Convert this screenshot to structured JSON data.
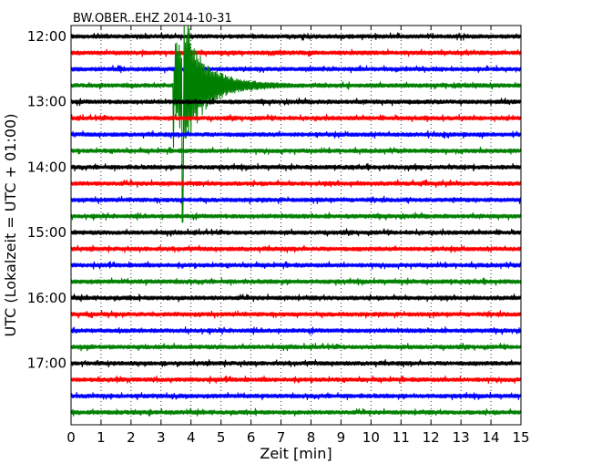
{
  "chart_data": {
    "type": "line",
    "title": "BW.OBER..EHZ 2014-10-31",
    "xlabel": "Zeit  [min]",
    "ylabel": "UTC (Lokalzeit = UTC + 01:00)",
    "xlim": [
      0,
      15
    ],
    "x_ticks": [
      "0",
      "1",
      "2",
      "3",
      "4",
      "5",
      "6",
      "7",
      "8",
      "9",
      "10",
      "11",
      "12",
      "13",
      "14",
      "15"
    ],
    "y_ticks": [
      "12:00",
      "13:00",
      "14:00",
      "15:00",
      "16:00",
      "17:00"
    ],
    "trace_start_times": [
      "12:00",
      "12:15",
      "12:30",
      "12:45",
      "13:00",
      "13:15",
      "13:30",
      "13:45",
      "14:00",
      "14:15",
      "14:30",
      "14:45",
      "15:00",
      "15:15",
      "15:30",
      "15:45",
      "16:00",
      "16:15",
      "16:30",
      "16:45",
      "17:00",
      "17:15",
      "17:30",
      "17:45"
    ],
    "trace_minutes": 15,
    "trace_colors": [
      "#000000",
      "#ff0000",
      "#0000ff",
      "#008000"
    ],
    "event": {
      "trace_start": "12:45",
      "onset_min": 3.4,
      "peak_min": 3.7,
      "color": "#008000"
    },
    "grid": "vertical dotted lines at each minute",
    "legend": "none"
  }
}
